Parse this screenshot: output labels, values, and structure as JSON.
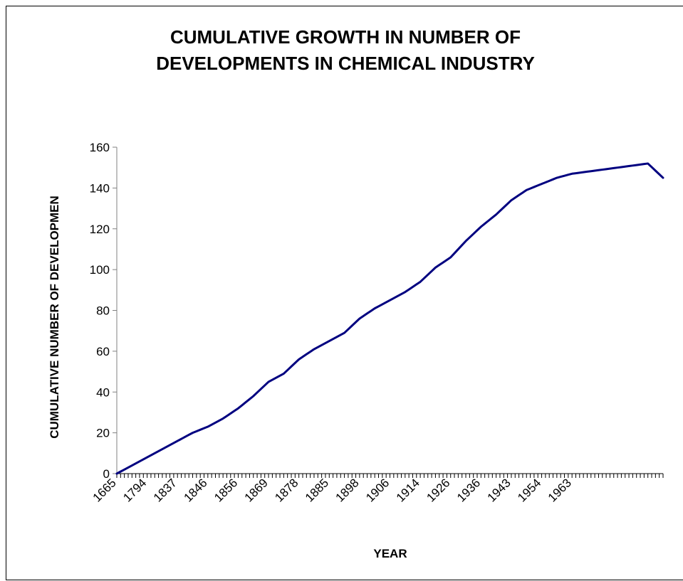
{
  "chart_data": {
    "type": "line",
    "title": "CUMULATIVE GROWTH IN NUMBER OF DEVELOPMENTS IN CHEMICAL INDUSTRY",
    "title_lines": [
      "CUMULATIVE GROWTH IN NUMBER OF",
      "DEVELOPMENTS IN CHEMICAL INDUSTRY"
    ],
    "xlabel": "YEAR",
    "ylabel": "CUMULATIVE NUMBER OF DEVELOPMEN",
    "ylim": [
      0,
      160
    ],
    "yticks": [
      0,
      20,
      40,
      60,
      80,
      100,
      120,
      140,
      160
    ],
    "ytick_labels": [
      "0",
      "20",
      "40",
      "60",
      "80",
      "100",
      "120",
      "140",
      "160"
    ],
    "xtick_labels": [
      "1665",
      "1794",
      "1837",
      "1846",
      "1856",
      "1869",
      "1878",
      "1885",
      "1898",
      "1906",
      "1914",
      "1926",
      "1936",
      "1943",
      "1954",
      "1963"
    ],
    "xtick_every": 8,
    "grid": false,
    "legend": "none",
    "line_color": "#000080",
    "point_index": [
      0,
      4,
      8,
      12,
      16,
      20,
      24,
      28,
      32,
      36,
      40,
      44,
      48,
      52,
      56,
      60,
      64,
      68,
      72,
      76,
      80,
      84,
      88,
      92,
      96,
      100,
      104,
      108,
      112,
      116,
      120,
      124,
      128,
      132,
      136,
      140,
      144
    ],
    "values": [
      0,
      4,
      8,
      12,
      16,
      20,
      23,
      27,
      32,
      38,
      45,
      49,
      56,
      61,
      65,
      69,
      76,
      81,
      85,
      89,
      94,
      101,
      106,
      114,
      121,
      127,
      134,
      139,
      142,
      145,
      147,
      148,
      149,
      150,
      151,
      152,
      145
    ],
    "n_points": 145
  }
}
